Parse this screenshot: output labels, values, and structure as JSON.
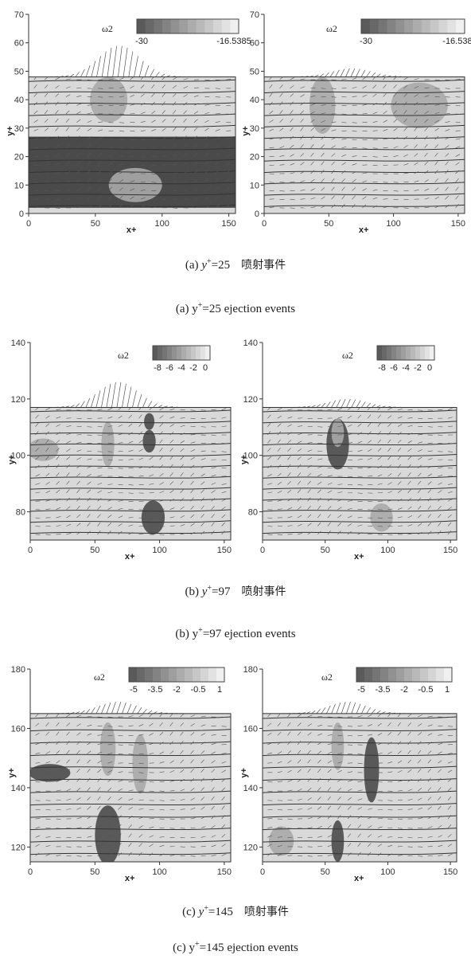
{
  "rows": [
    {
      "id": "a",
      "xticks": [
        "0",
        "50",
        "100",
        "150"
      ],
      "yticks": [
        "0",
        "10",
        "20",
        "30",
        "40",
        "50",
        "60",
        "70"
      ],
      "ytick_values": [
        0,
        10,
        20,
        30,
        40,
        50,
        60,
        70
      ],
      "y_range": [
        0,
        70
      ],
      "x_range": [
        0,
        155
      ],
      "plane_top": 48,
      "xlabel": "x+",
      "ylabel": "y+",
      "colorbar_title": "ω2",
      "colorbar_ticks": [
        "-30",
        "-16.5385"
      ],
      "caption_cn": {
        "prefix": "(a) ",
        "var": "y",
        "sup": "+",
        "rest": "=25",
        "zh": "喷射事件"
      },
      "caption_en": {
        "prefix": "(a) y",
        "sup": "+",
        "rest": "=25 ejection events"
      }
    },
    {
      "id": "b",
      "xticks": [
        "0",
        "50",
        "100",
        "150"
      ],
      "yticks": [
        "80",
        "100",
        "120",
        "140"
      ],
      "ytick_values": [
        80,
        100,
        120,
        140
      ],
      "y_range": [
        70,
        140
      ],
      "x_range": [
        0,
        155
      ],
      "plane_top": 117,
      "xlabel": "x+",
      "ylabel": "y+",
      "colorbar_title": "ω2",
      "colorbar_ticks": [
        "-8",
        "-6",
        "-4",
        "-2",
        "0"
      ],
      "caption_cn": {
        "prefix": "(b) ",
        "var": "y",
        "sup": "+",
        "rest": "=97",
        "zh": "喷射事件"
      },
      "caption_en": {
        "prefix": "(b) y",
        "sup": "+",
        "rest": "=97 ejection events"
      }
    },
    {
      "id": "c",
      "xticks": [
        "0",
        "50",
        "100",
        "150"
      ],
      "yticks": [
        "120",
        "140",
        "160",
        "180"
      ],
      "ytick_values": [
        120,
        140,
        160,
        180
      ],
      "y_range": [
        115,
        180
      ],
      "x_range": [
        0,
        155
      ],
      "plane_top": 165,
      "xlabel": "x+",
      "ylabel": "y+",
      "colorbar_title": "ω2",
      "colorbar_ticks": [
        "-5",
        "-3.5",
        "-2",
        "-0.5",
        "1"
      ],
      "caption_cn": {
        "prefix": "(c) ",
        "var": "y",
        "sup": "+",
        "rest": "=145",
        "zh": "喷射事件"
      },
      "caption_en": {
        "prefix": "(c) y",
        "sup": "+",
        "rest": "=145 ejection events"
      }
    }
  ],
  "colors": {
    "light": "#d9d9d9",
    "mid": "#a8a8a8",
    "dark": "#4a4a4a",
    "arrow": "#333333"
  }
}
